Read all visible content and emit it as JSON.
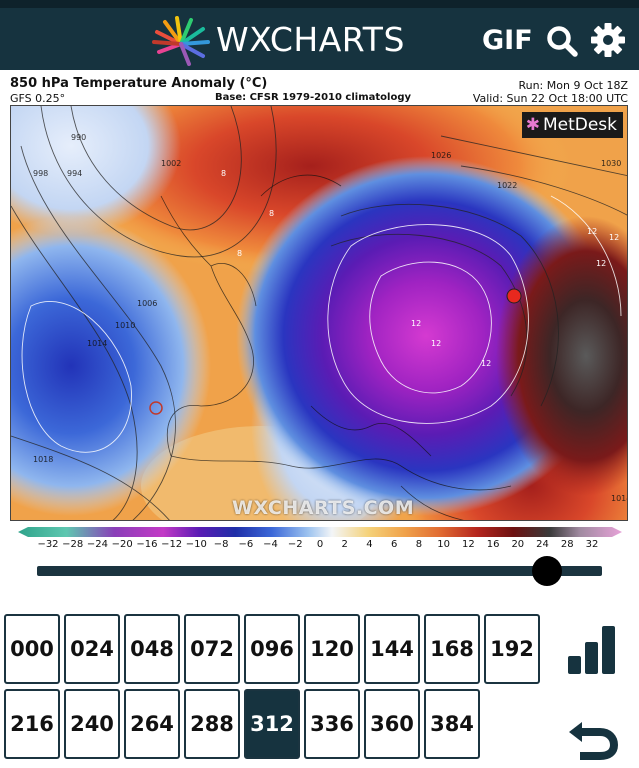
{
  "header": {
    "logo_text": "WXCHARTS",
    "gif_label": "GIF",
    "icons": [
      "logo-pinwheel-icon",
      "search-icon",
      "gear-icon"
    ],
    "background_color": "#16333f"
  },
  "map": {
    "title": "850 hPa Temperature Anomaly (°C)",
    "model": "GFS 0.25°",
    "base": "Base: CFSR 1979-2010 climatology",
    "run": "Run: Mon 9 Oct 18Z",
    "valid": "Valid: Sun 22 Oct 18:00 UTC",
    "brand": "MetDesk",
    "watermark": "WXCHARTS.COM",
    "isobar_labels": [
      "990",
      "994",
      "998",
      "1002",
      "1006",
      "1010",
      "1014",
      "1018",
      "1022",
      "1026",
      "1030",
      "1014"
    ],
    "contour_labels": [
      "8",
      "8",
      "8",
      "12",
      "12",
      "12",
      "12",
      "12",
      "12"
    ]
  },
  "colorbar": {
    "ticks": [
      "−32",
      "−28",
      "−24",
      "−20",
      "−16",
      "−12",
      "−10",
      "−8",
      "−6",
      "−4",
      "−2",
      "0",
      "2",
      "4",
      "6",
      "8",
      "10",
      "12",
      "16",
      "20",
      "24",
      "28",
      "32"
    ]
  },
  "slider": {
    "selected_hour": "312",
    "position_fraction": 0.903
  },
  "timesteps": {
    "row1": [
      "000",
      "024",
      "048",
      "072",
      "096",
      "120",
      "144",
      "168",
      "192"
    ],
    "row2": [
      "216",
      "240",
      "264",
      "288",
      "312",
      "336",
      "360",
      "384"
    ],
    "active": "312"
  },
  "side_buttons": [
    "bar-chart-icon",
    "undo-arrow-icon"
  ]
}
